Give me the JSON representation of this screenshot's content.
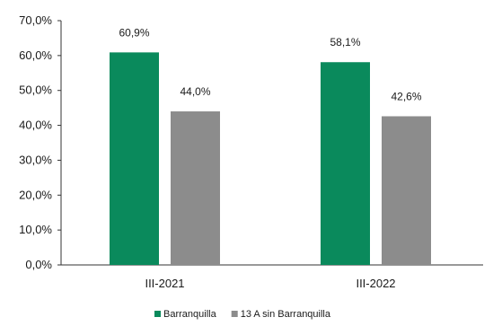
{
  "chart_data": {
    "type": "bar",
    "categories": [
      "III-2021",
      "III-2022"
    ],
    "series": [
      {
        "name": "Barranquilla",
        "color": "#0a8a5c",
        "values": [
          60.9,
          58.1
        ],
        "labels": [
          "60,9%",
          "58,1%"
        ]
      },
      {
        "name": "13 A sin Barranquilla",
        "color": "#8c8c8c",
        "values": [
          44.0,
          42.6
        ],
        "labels": [
          "44,0%",
          "42,6%"
        ]
      }
    ],
    "ylim": [
      0,
      70
    ],
    "yticks": [
      0,
      10,
      20,
      30,
      40,
      50,
      60,
      70
    ],
    "ytick_labels": [
      "0,0%",
      "10,0%",
      "20,0%",
      "30,0%",
      "40,0%",
      "50,0%",
      "60,0%",
      "70,0%"
    ],
    "grid": false,
    "legend_position": "bottom"
  }
}
